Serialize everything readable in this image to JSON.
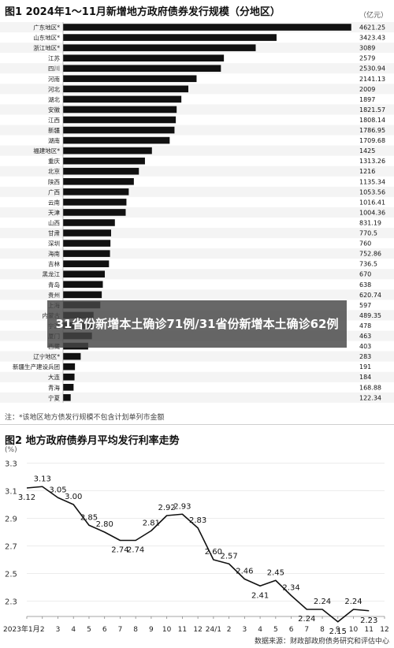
{
  "fig1": {
    "title": "图1 2024年1～11月新增地方政府债券发行规模（分地区）",
    "unit": "（亿元）",
    "note": "注：*该地区地方债发行规模不包含计划单列市金额"
  },
  "fig2": {
    "title": "图2 地方政府债券月平均发行利率走势",
    "unit": "(%)",
    "source": "数据来源：财政部政府债务研究和评估中心"
  },
  "overlay_text": "31省份新增本土确诊71例/31省份新增本土确诊62例",
  "colors": {
    "bar": "#111111",
    "line": "#111111",
    "grid": "#e6e6e6"
  },
  "chart_data": [
    {
      "type": "bar",
      "orientation": "horizontal",
      "title": "图1 2024年1～11月新增地方政府债券发行规模（分地区）",
      "unit": "亿元",
      "categories": [
        "广东地区*",
        "山东地区*",
        "浙江地区*",
        "江苏",
        "四川",
        "河南",
        "河北",
        "湖北",
        "安徽",
        "江西",
        "新疆",
        "湖南",
        "福建地区*",
        "重庆",
        "北京",
        "陕西",
        "广西",
        "云南",
        "天津",
        "山西",
        "甘肃",
        "深圳",
        "海南",
        "吉林",
        "黑龙江",
        "青岛",
        "贵州",
        "上海",
        "内蒙古",
        "宁波",
        "厦门",
        "西藏",
        "辽宁地区*",
        "新疆生产建设兵团",
        "大连",
        "青海",
        "宁夏"
      ],
      "values": [
        4621.25,
        3423.43,
        3089,
        2579,
        2530.94,
        2141.13,
        2009,
        1897,
        1821.57,
        1808.14,
        1786.95,
        1709.68,
        1425,
        1313.26,
        1216,
        1135.34,
        1053.56,
        1016.41,
        1004.36,
        831.19,
        770.5,
        760,
        752.86,
        736.5,
        670,
        638,
        620.74,
        597,
        489.35,
        478,
        463,
        403,
        283,
        191,
        184,
        168.88,
        122.34
      ],
      "value_labels": [
        "4621.25",
        "3423.43",
        "3089",
        "2579",
        "2530.94",
        "2141.13",
        "2009",
        "1897",
        "1821.57",
        "1808.14",
        "1786.95",
        "1709.68",
        "1425",
        "1313.26",
        "1216",
        "1135.34",
        "1053.56",
        "1016.41",
        "1004.36",
        "831.19",
        "770.5",
        "760",
        "752.86",
        "736.5",
        "670",
        "638",
        "620.74",
        "597",
        "489.35",
        "478",
        "463",
        "403",
        "283",
        "191",
        "184",
        "168.88",
        "122.34"
      ],
      "xlim": [
        0,
        4700
      ]
    },
    {
      "type": "line",
      "title": "图2 地方政府债券月平均发行利率走势",
      "ylabel": "%",
      "x_labels": [
        "2023年1月",
        "2",
        "3",
        "4",
        "5",
        "6",
        "7",
        "8",
        "9",
        "10",
        "11",
        "12",
        "24/1",
        "2",
        "3",
        "4",
        "5",
        "6",
        "7",
        "8",
        "9",
        "10",
        "11",
        "12"
      ],
      "values": [
        3.12,
        3.13,
        3.05,
        3.0,
        2.85,
        2.8,
        2.74,
        2.74,
        2.81,
        2.92,
        2.93,
        2.83,
        2.6,
        2.57,
        2.46,
        2.41,
        2.45,
        2.34,
        2.24,
        2.24,
        2.15,
        2.24,
        2.23
      ],
      "point_labels": [
        "3.12",
        "3.13",
        "3.05",
        "3.00",
        "2.85",
        "2.80",
        "2.74",
        "2.74",
        "2.81",
        "2.92",
        "2.93",
        "2.83",
        "2.60",
        "2.57",
        "2.46",
        "2.41",
        "2.45",
        "2.34",
        "2.24",
        "2.24",
        "2.15",
        "2.24",
        "2.23"
      ],
      "y_ticks": [
        "3.3",
        "3.1",
        "2.9",
        "2.7",
        "2.5",
        "2.3"
      ],
      "ylim": [
        2.28,
        3.32
      ]
    }
  ]
}
